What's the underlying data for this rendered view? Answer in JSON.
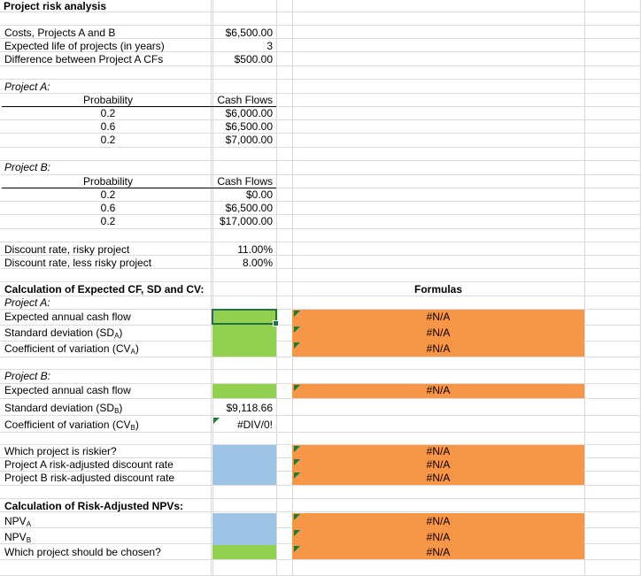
{
  "title": "Project risk analysis",
  "inputs": {
    "rows": [
      {
        "label": "Costs, Projects A and B",
        "value": "$6,500.00"
      },
      {
        "label": "Expected life of projects (in years)",
        "value": "3"
      },
      {
        "label": "Difference between Project A CFs",
        "value": "$500.00"
      }
    ]
  },
  "project_a": {
    "heading": "Project A:",
    "prob_header": "Probability",
    "cf_header": "Cash Flows",
    "probabilities": [
      "0.2",
      "0.6",
      "0.2"
    ],
    "cash_flows": [
      "$6,000.00",
      "$6,500.00",
      "$7,000.00"
    ]
  },
  "project_b": {
    "heading": "Project B:",
    "prob_header": "Probability",
    "cf_header": "Cash Flows",
    "probabilities": [
      "0.2",
      "0.6",
      "0.2"
    ],
    "cash_flows": [
      "$0.00",
      "$6,500.00",
      "$17,000.00"
    ]
  },
  "discount": {
    "risky_label": "Discount rate, risky project",
    "risky_value": "11.00%",
    "less_risky_label": "Discount rate, less risky project",
    "less_risky_value": "8.00%"
  },
  "calc_cv": {
    "heading": "Calculation of Expected CF, SD and CV:",
    "formulas_header": "Formulas",
    "a_heading": "Project A:",
    "a_expected_label": "Expected annual cash flow",
    "a_sd_label": "Standard deviation (SD",
    "a_sd_sub": "A",
    "a_cv_label": "Coefficient of variation (CV",
    "a_cv_sub": "A",
    "a_formulas": [
      "#N/A",
      "#N/A",
      "#N/A"
    ],
    "b_heading": "Project B:",
    "b_expected_label": "Expected annual cash flow",
    "b_sd_label": "Standard deviation (SD",
    "b_sd_sub": "B",
    "b_cv_label": "Coefficient of variation (CV",
    "b_cv_sub": "B",
    "b_formula": "#N/A",
    "b_sd_value": "$9,118.66",
    "b_cv_value": "#DIV/0!"
  },
  "riskier": {
    "q_label": "Which project is riskier?",
    "a_rate_label": "Project A risk-adjusted discount rate",
    "b_rate_label": "Project B risk-adjusted discount rate",
    "formulas": [
      "#N/A",
      "#N/A",
      "#N/A"
    ]
  },
  "npv": {
    "heading": "Calculation of Risk-Adjusted NPVs:",
    "npv_a_label": "NPV",
    "npv_a_sub": "A",
    "npv_b_label": "NPV",
    "npv_b_sub": "B",
    "choose_label": "Which project should be chosen?",
    "formulas": [
      "#N/A",
      "#N/A",
      "#N/A"
    ]
  },
  "colors": {
    "input_green": "#92d050",
    "input_blue": "#9dc3e6",
    "formula_orange": "#f79646",
    "comment_marker": "#1e7b34"
  }
}
